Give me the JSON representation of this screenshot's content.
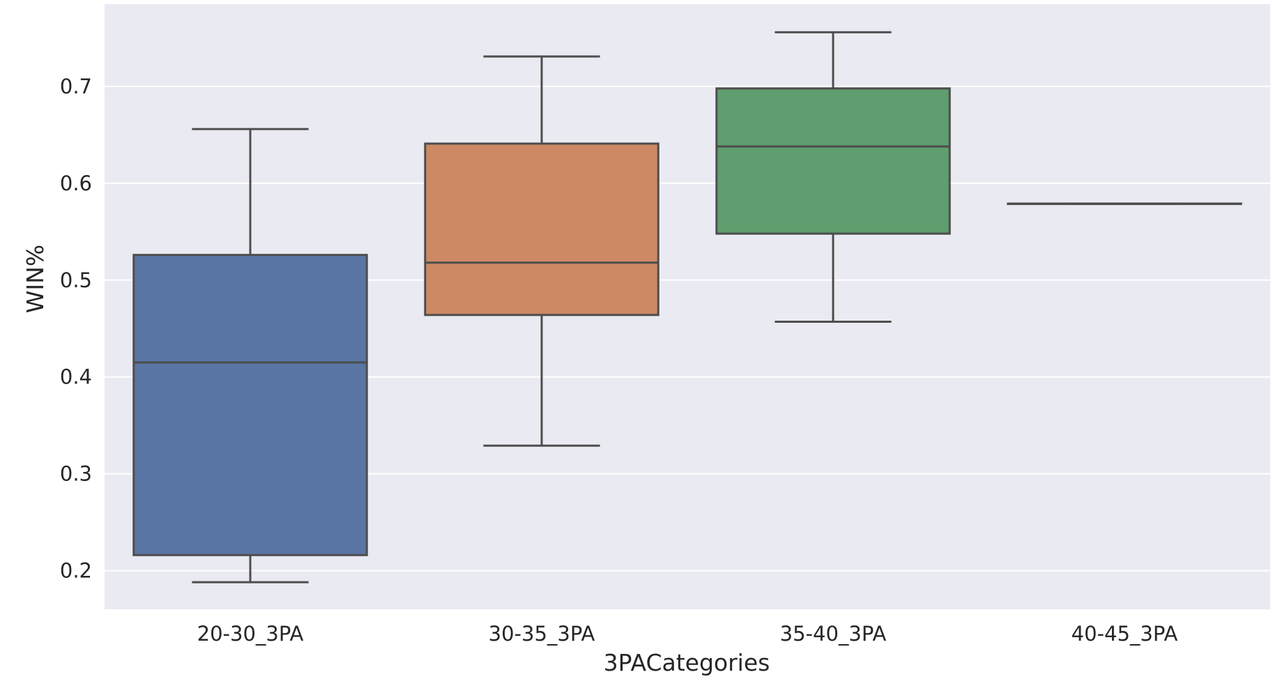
{
  "chart_data": {
    "type": "box",
    "xlabel": "3PACategories",
    "ylabel": "WIN%",
    "ylim": [
      0.16,
      0.785
    ],
    "yticks": [
      0.2,
      0.3,
      0.4,
      0.5,
      0.6,
      0.7
    ],
    "ytick_labels": [
      "0.2",
      "0.3",
      "0.4",
      "0.5",
      "0.6",
      "0.7"
    ],
    "grid": true,
    "categories": [
      "20-30_3PA",
      "30-35_3PA",
      "35-40_3PA",
      "40-45_3PA"
    ],
    "boxes": [
      {
        "category": "20-30_3PA",
        "whisker_low": 0.188,
        "q1": 0.216,
        "median": 0.415,
        "q3": 0.526,
        "whisker_high": 0.656,
        "color": "#5975a4"
      },
      {
        "category": "30-35_3PA",
        "whisker_low": 0.329,
        "q1": 0.464,
        "median": 0.518,
        "q3": 0.641,
        "whisker_high": 0.731,
        "color": "#cc8963"
      },
      {
        "category": "35-40_3PA",
        "whisker_low": 0.457,
        "q1": 0.548,
        "median": 0.638,
        "q3": 0.698,
        "whisker_high": 0.756,
        "color": "#5f9e6e"
      },
      {
        "category": "40-45_3PA",
        "whisker_low": 0.579,
        "q1": 0.579,
        "median": 0.579,
        "q3": 0.579,
        "whisker_high": 0.579,
        "color": "#b55d60"
      }
    ],
    "colors": {
      "plot_background": "#eaeaf2",
      "grid": "#ffffff",
      "box_edge": "#4d4d4d"
    }
  }
}
